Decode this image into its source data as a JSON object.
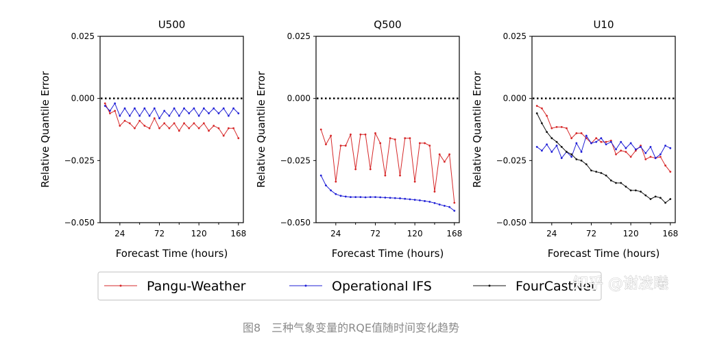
{
  "chart_data": [
    {
      "type": "line",
      "title": "U500",
      "xlabel": "Forecast Time (hours)",
      "ylabel": "Relative Quantile Error",
      "xticks": [
        24,
        72,
        120,
        168
      ],
      "yticks": [
        "0.025",
        "0.000",
        "−0.025",
        "−0.050"
      ],
      "xlim": [
        0,
        174
      ],
      "ylim": [
        -0.05,
        0.025
      ],
      "reference_line": 0,
      "x": [
        6,
        12,
        18,
        24,
        30,
        36,
        42,
        48,
        54,
        60,
        66,
        72,
        78,
        84,
        90,
        96,
        102,
        108,
        114,
        120,
        126,
        132,
        138,
        144,
        150,
        156,
        162,
        168
      ],
      "series": [
        {
          "name": "Pangu-Weather",
          "values": [
            -0.002,
            -0.006,
            -0.005,
            -0.011,
            -0.009,
            -0.01,
            -0.012,
            -0.009,
            -0.011,
            -0.012,
            -0.008,
            -0.012,
            -0.01,
            -0.012,
            -0.01,
            -0.013,
            -0.01,
            -0.012,
            -0.01,
            -0.012,
            -0.01,
            -0.013,
            -0.011,
            -0.012,
            -0.015,
            -0.012,
            -0.012,
            -0.016
          ]
        },
        {
          "name": "Operational IFS",
          "values": [
            -0.003,
            -0.005,
            -0.002,
            -0.007,
            -0.004,
            -0.007,
            -0.004,
            -0.007,
            -0.004,
            -0.007,
            -0.004,
            -0.008,
            -0.005,
            -0.007,
            -0.004,
            -0.007,
            -0.004,
            -0.006,
            -0.004,
            -0.007,
            -0.004,
            -0.006,
            -0.004,
            -0.006,
            -0.004,
            -0.007,
            -0.004,
            -0.006
          ]
        }
      ]
    },
    {
      "type": "line",
      "title": "Q500",
      "xlabel": "Forecast Time (hours)",
      "ylabel": "Relative Quantile Error",
      "xticks": [
        24,
        72,
        120,
        168
      ],
      "yticks": [
        "0.025",
        "0.000",
        "−0.025",
        "−0.050"
      ],
      "xlim": [
        0,
        174
      ],
      "ylim": [
        -0.05,
        0.025
      ],
      "reference_line": 0,
      "x": [
        6,
        12,
        18,
        24,
        30,
        36,
        42,
        48,
        54,
        60,
        66,
        72,
        78,
        84,
        90,
        96,
        102,
        108,
        114,
        120,
        126,
        132,
        138,
        144,
        150,
        156,
        162,
        168
      ],
      "series": [
        {
          "name": "Pangu-Weather",
          "values": [
            -0.0125,
            -0.0185,
            -0.015,
            -0.0335,
            -0.019,
            -0.019,
            -0.0145,
            -0.0285,
            -0.0145,
            -0.0145,
            -0.0285,
            -0.014,
            -0.018,
            -0.031,
            -0.016,
            -0.0165,
            -0.031,
            -0.016,
            -0.016,
            -0.0335,
            -0.018,
            -0.018,
            -0.019,
            -0.0375,
            -0.0225,
            -0.0255,
            -0.0225,
            -0.042
          ]
        },
        {
          "name": "Operational IFS",
          "values": [
            -0.031,
            -0.035,
            -0.037,
            -0.0385,
            -0.0392,
            -0.0395,
            -0.0397,
            -0.0397,
            -0.0397,
            -0.0398,
            -0.0397,
            -0.0397,
            -0.0398,
            -0.0399,
            -0.04,
            -0.0401,
            -0.0402,
            -0.0404,
            -0.0406,
            -0.0408,
            -0.041,
            -0.0413,
            -0.0416,
            -0.0421,
            -0.0427,
            -0.0432,
            -0.0437,
            -0.0452
          ]
        }
      ]
    },
    {
      "type": "line",
      "title": "U10",
      "xlabel": "Forecast Time (hours)",
      "ylabel": "Relative Quantile Error",
      "xticks": [
        24,
        72,
        120,
        168
      ],
      "yticks": [
        "0.025",
        "0.000",
        "−0.025",
        "−0.050"
      ],
      "xlim": [
        0,
        174
      ],
      "ylim": [
        -0.05,
        0.025
      ],
      "reference_line": 0,
      "x": [
        6,
        12,
        18,
        24,
        30,
        36,
        42,
        48,
        54,
        60,
        66,
        72,
        78,
        84,
        90,
        96,
        102,
        108,
        114,
        120,
        126,
        132,
        138,
        144,
        150,
        156,
        162,
        168
      ],
      "series": [
        {
          "name": "Pangu-Weather",
          "values": [
            -0.003,
            -0.004,
            -0.007,
            -0.012,
            -0.0115,
            -0.0115,
            -0.012,
            -0.016,
            -0.014,
            -0.014,
            -0.016,
            -0.018,
            -0.016,
            -0.0175,
            -0.0175,
            -0.017,
            -0.0225,
            -0.021,
            -0.0215,
            -0.0235,
            -0.021,
            -0.019,
            -0.0245,
            -0.0235,
            -0.024,
            -0.0235,
            -0.027,
            -0.0295
          ]
        },
        {
          "name": "Operational IFS",
          "values": [
            -0.0195,
            -0.021,
            -0.0185,
            -0.0215,
            -0.019,
            -0.024,
            -0.0215,
            -0.0235,
            -0.018,
            -0.0215,
            -0.015,
            -0.018,
            -0.0175,
            -0.016,
            -0.0185,
            -0.0175,
            -0.0205,
            -0.0175,
            -0.02,
            -0.018,
            -0.0205,
            -0.0195,
            -0.022,
            -0.0195,
            -0.024,
            -0.0225,
            -0.019,
            -0.02
          ]
        },
        {
          "name": "FourCastNet",
          "values": [
            -0.006,
            -0.01,
            -0.0135,
            -0.016,
            -0.0175,
            -0.0195,
            -0.0215,
            -0.0225,
            -0.0245,
            -0.025,
            -0.0265,
            -0.029,
            -0.0295,
            -0.03,
            -0.031,
            -0.033,
            -0.034,
            -0.034,
            -0.0355,
            -0.037,
            -0.037,
            -0.0375,
            -0.039,
            -0.0405,
            -0.0395,
            -0.04,
            -0.042,
            -0.0405
          ]
        }
      ]
    }
  ],
  "legend": {
    "placement": "bottom-center",
    "entries": [
      {
        "label": "Pangu-Weather",
        "color": "#d62728"
      },
      {
        "label": "Operational IFS",
        "color": "#1f1fd6"
      },
      {
        "label": "FourCastNet",
        "color": "#111111"
      }
    ]
  },
  "colors": {
    "Pangu-Weather": "#d62728",
    "Operational IFS": "#1f1fd6",
    "FourCastNet": "#111111"
  },
  "caption": "图8　三种气象变量的RQE值随时间变化趋势",
  "watermark": "知乎 @谢凌曦"
}
